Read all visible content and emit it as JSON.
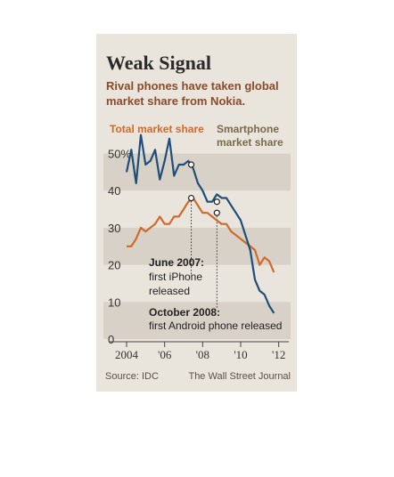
{
  "chart_data": {
    "type": "line",
    "title": "Weak Signal",
    "subtitle_lines": [
      "Rival phones have taken global",
      "market share from Nokia."
    ],
    "source": "Source: IDC",
    "publisher": "The Wall Street Journal",
    "x_tick_labels": [
      {
        "x": 2004,
        "label": "2004"
      },
      {
        "x": 2006,
        "label": "'06"
      },
      {
        "x": 2008,
        "label": "'08"
      },
      {
        "x": 2010,
        "label": "'10"
      },
      {
        "x": 2012,
        "label": "'12"
      }
    ],
    "y_tick_labels": [
      {
        "y": 50,
        "label": "50%"
      },
      {
        "y": 40,
        "label": "40"
      },
      {
        "y": 30,
        "label": "30"
      },
      {
        "y": 20,
        "label": "20"
      },
      {
        "y": 10,
        "label": "10"
      },
      {
        "y": 0,
        "label": "0"
      }
    ],
    "xlim": [
      2004,
      2012.25
    ],
    "ylim": [
      0,
      53
    ],
    "series": [
      {
        "name": "Total market share",
        "name_lines": [
          "Total market share"
        ],
        "color": "#cf6a2a",
        "x": [
          2004.0,
          2004.25,
          2004.5,
          2004.75,
          2005.0,
          2005.25,
          2005.5,
          2005.75,
          2006.0,
          2006.25,
          2006.5,
          2006.75,
          2007.0,
          2007.25,
          2007.5,
          2007.75,
          2008.0,
          2008.25,
          2008.5,
          2008.75,
          2009.0,
          2009.25,
          2009.5,
          2009.75,
          2010.0,
          2010.25,
          2010.5,
          2010.75,
          2011.0,
          2011.25,
          2011.5,
          2011.75
        ],
        "values": [
          25,
          25,
          27,
          30,
          29,
          30,
          31,
          33,
          31,
          31,
          33,
          33,
          35,
          37,
          38,
          36,
          34,
          34,
          33,
          32,
          31,
          31,
          29,
          28,
          27,
          26,
          25,
          24,
          20,
          22,
          21,
          18
        ]
      },
      {
        "name": "Smartphone market share",
        "name_lines": [
          "Smartphone",
          "market share"
        ],
        "color": "#1e4e79",
        "x": [
          2004.0,
          2004.25,
          2004.5,
          2004.75,
          2005.0,
          2005.25,
          2005.5,
          2005.75,
          2006.0,
          2006.25,
          2006.5,
          2006.75,
          2007.0,
          2007.25,
          2007.5,
          2007.75,
          2008.0,
          2008.25,
          2008.5,
          2008.75,
          2009.0,
          2009.25,
          2009.5,
          2009.75,
          2010.0,
          2010.25,
          2010.5,
          2010.75,
          2011.0,
          2011.25,
          2011.5,
          2011.75
        ],
        "values": [
          45,
          51,
          42,
          55,
          47,
          48,
          51,
          43,
          48,
          54,
          44,
          47,
          47,
          48,
          46,
          42,
          40,
          37,
          37,
          39,
          38,
          38,
          36,
          34,
          32,
          28,
          24,
          16,
          13,
          12,
          9,
          7
        ]
      }
    ],
    "annotations": [
      {
        "lines": [
          "June 2007:",
          "first iPhone",
          "released"
        ],
        "x": 2007.4,
        "y_marker": 38
      },
      {
        "lines": [
          "October 2008:",
          "first Android phone released"
        ],
        "x": 2008.75,
        "y_marker": 34
      }
    ],
    "grid": "horizontal bands",
    "legend": "top-left series labels"
  }
}
